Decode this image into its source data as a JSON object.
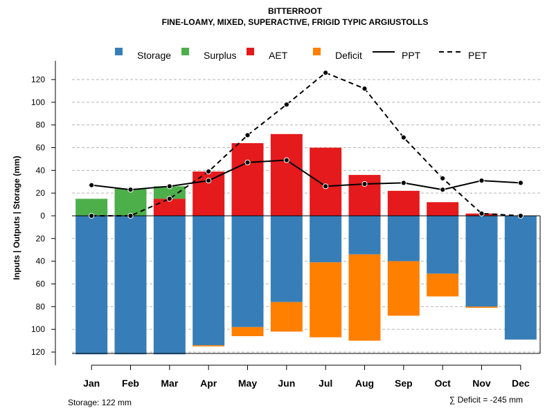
{
  "chart_data": {
    "type": "bar",
    "title": "BITTERROOT",
    "subtitle": "FINE-LOAMY, MIXED, SUPERACTIVE, FRIGID TYPIC ARGIUSTOLLS",
    "ylabel": "Inputs | Outputs | Storage    (mm)",
    "xlabel": "",
    "categories": [
      "Jan",
      "Feb",
      "Mar",
      "Apr",
      "May",
      "Jun",
      "Jul",
      "Aug",
      "Sep",
      "Oct",
      "Nov",
      "Dec"
    ],
    "ylim": [
      -122,
      130
    ],
    "y_ticks": [
      -120,
      -100,
      -80,
      -60,
      -40,
      -20,
      0,
      20,
      40,
      60,
      80,
      100,
      120
    ],
    "y_tick_labels": [
      "120",
      "100",
      "80",
      "60",
      "40",
      "20",
      "0",
      "20",
      "40",
      "60",
      "80",
      "100",
      "120"
    ],
    "legend": [
      {
        "label": "Storage",
        "kind": "box",
        "color": "#377EB8"
      },
      {
        "label": "Surplus",
        "kind": "box",
        "color": "#4DAF4A"
      },
      {
        "label": "AET",
        "kind": "box",
        "color": "#E41A1C"
      },
      {
        "label": "Deficit",
        "kind": "box",
        "color": "#FF7F00"
      },
      {
        "label": "PPT",
        "kind": "solid",
        "color": "#000000"
      },
      {
        "label": "PET",
        "kind": "dashed",
        "color": "#000000"
      }
    ],
    "series": [
      {
        "name": "Storage",
        "color": "#377EB8",
        "values": [
          -122,
          -122,
          -122,
          -114,
          -98,
          -76,
          -41,
          -34,
          -40,
          -51,
          -80,
          -109
        ]
      },
      {
        "name": "Deficit",
        "color": "#FF7F00",
        "values": [
          0,
          0,
          0,
          -1,
          -8,
          -26,
          -66,
          -76,
          -48,
          -20,
          -1,
          0
        ]
      },
      {
        "name": "AET",
        "color": "#E41A1C",
        "values": [
          0,
          0,
          15,
          39,
          64,
          72,
          60,
          36,
          22,
          12,
          2,
          0
        ]
      },
      {
        "name": "Surplus",
        "color": "#4DAF4A",
        "values": [
          15,
          24,
          11,
          0,
          0,
          0,
          0,
          0,
          0,
          0,
          0,
          0
        ]
      },
      {
        "name": "PPT",
        "color": "#000000",
        "values": [
          27,
          23,
          26,
          31,
          47,
          49,
          26,
          28,
          29,
          23,
          31,
          29
        ]
      },
      {
        "name": "PET",
        "color": "#000000",
        "values": [
          0,
          0,
          15,
          39,
          71,
          98,
          126,
          112,
          69,
          33,
          2,
          0
        ]
      }
    ],
    "storage_label": "Storage: 122 mm",
    "deficit_label": "∑ Deficit = -245 mm"
  }
}
